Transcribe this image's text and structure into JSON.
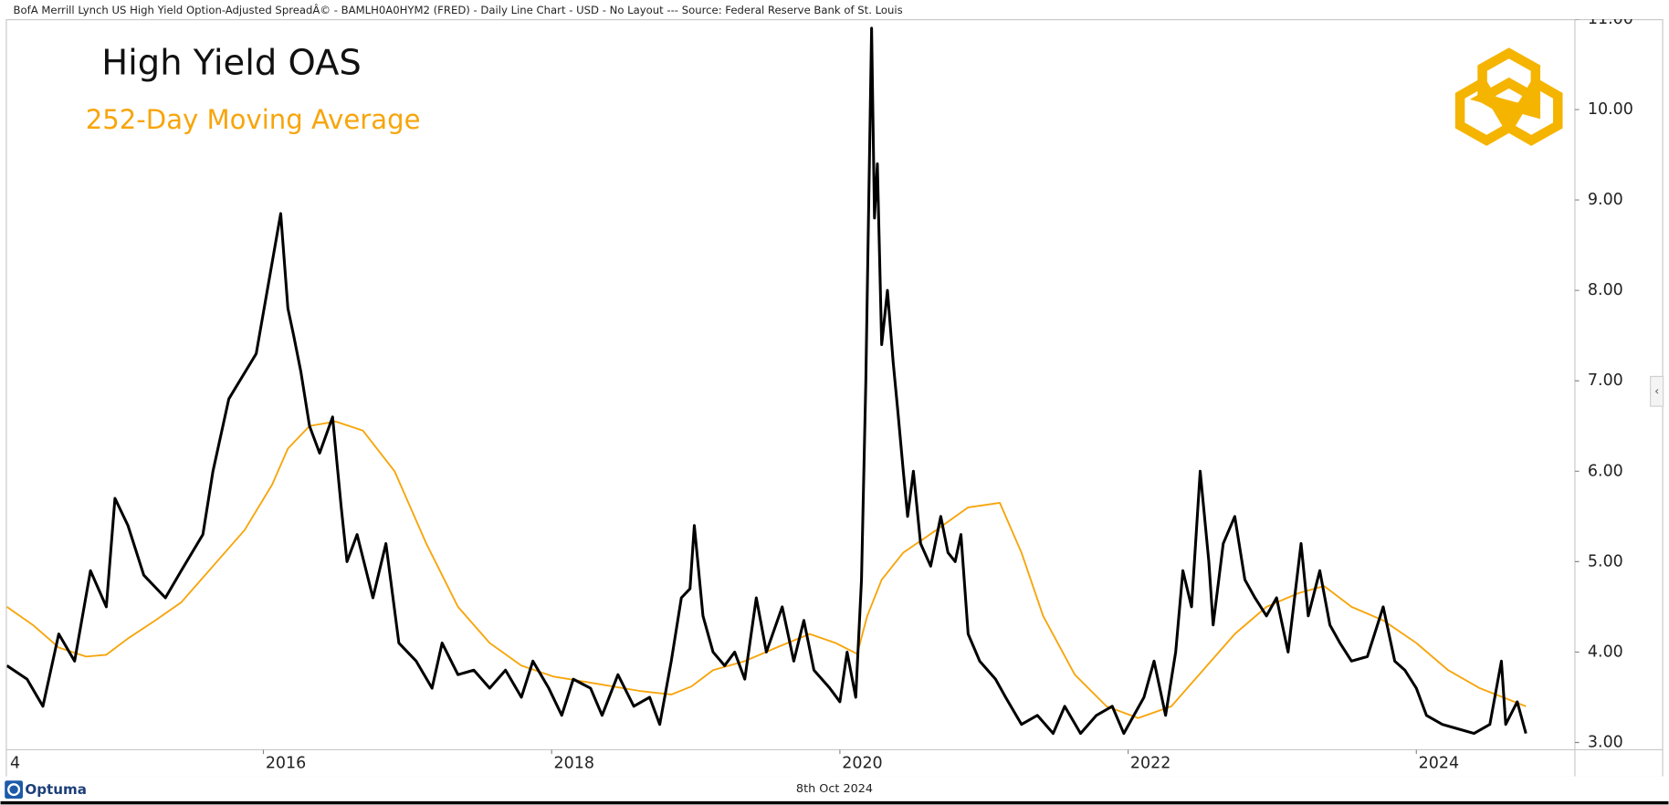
{
  "chart_data": {
    "type": "line",
    "header": "BofA Merrill Lynch US High Yield Option-Adjusted SpreadÂ© - BAMLH0A0HYM2 (FRED) - Daily Line Chart - USD - No Layout --- Source: Federal Reserve Bank of St. Louis",
    "title": "High Yield OAS",
    "subtitle": "252-Day Moving Average",
    "date": "8th Oct 2024",
    "brand": "Optuma",
    "xlim": [
      2014.22,
      2025.1
    ],
    "ylim": [
      2.92,
      11.0
    ],
    "xticks": [
      {
        "value": 2014,
        "label": "4"
      },
      2016,
      2018,
      2020,
      2022,
      2024
    ],
    "yticks": [
      {
        "value": 3,
        "label": "3.00"
      },
      {
        "value": 4,
        "label": "4.00"
      },
      {
        "value": 5,
        "label": "5.00"
      },
      {
        "value": 6,
        "label": "6.00"
      },
      {
        "value": 7,
        "label": "7.00"
      },
      {
        "value": 8,
        "label": "8.00"
      },
      {
        "value": 9,
        "label": "9.00"
      },
      {
        "value": 10,
        "label": "10.00"
      },
      {
        "value": 11,
        "label": "11.00"
      }
    ],
    "series": [
      {
        "color": "#000000",
        "x": [
          2014.22,
          2014.36,
          2014.47,
          2014.58,
          2014.69,
          2014.8,
          2014.91,
          2014.97,
          2015.06,
          2015.17,
          2015.32,
          2015.43,
          2015.58,
          2015.65,
          2015.76,
          2015.95,
          2016.12,
          2016.17,
          2016.21,
          2016.26,
          2016.32,
          2016.39,
          2016.48,
          2016.54,
          2016.58,
          2016.65,
          2016.76,
          2016.85,
          2016.94,
          2017.06,
          2017.17,
          2017.24,
          2017.35,
          2017.46,
          2017.57,
          2017.68,
          2017.79,
          2017.87,
          2017.98,
          2018.07,
          2018.15,
          2018.27,
          2018.35,
          2018.46,
          2018.57,
          2018.68,
          2018.75,
          2018.83,
          2018.9,
          2018.96,
          2018.99,
          2019.05,
          2019.12,
          2019.2,
          2019.27,
          2019.34,
          2019.42,
          2019.49,
          2019.6,
          2019.68,
          2019.75,
          2019.82,
          2019.93,
          2020.0,
          2020.05,
          2020.11,
          2020.15,
          2020.18,
          2020.22,
          2020.24,
          2020.26,
          2020.29,
          2020.33,
          2020.37,
          2020.4,
          2020.44,
          2020.47,
          2020.51,
          2020.56,
          2020.63,
          2020.7,
          2020.75,
          2020.8,
          2020.84,
          2020.89,
          2020.97,
          2021.08,
          2021.15,
          2021.26,
          2021.37,
          2021.48,
          2021.56,
          2021.67,
          2021.78,
          2021.89,
          2021.97,
          2022.04,
          2022.11,
          2022.18,
          2022.26,
          2022.33,
          2022.38,
          2022.44,
          2022.5,
          2022.56,
          2022.59,
          2022.66,
          2022.74,
          2022.81,
          2022.88,
          2022.96,
          2023.03,
          2023.11,
          2023.2,
          2023.25,
          2023.33,
          2023.4,
          2023.47,
          2023.55,
          2023.66,
          2023.77,
          2023.85,
          2023.92,
          2024.0,
          2024.07,
          2024.18,
          2024.29,
          2024.4,
          2024.51,
          2024.59,
          2024.62,
          2024.7,
          2024.76
        ],
        "values": [
          3.85,
          3.7,
          3.4,
          4.2,
          3.9,
          4.9,
          4.5,
          5.7,
          5.4,
          4.85,
          4.6,
          4.9,
          5.3,
          6.0,
          6.8,
          7.3,
          8.85,
          7.8,
          7.5,
          7.1,
          6.5,
          6.2,
          6.6,
          5.6,
          5.0,
          5.3,
          4.6,
          5.2,
          4.1,
          3.9,
          3.6,
          4.1,
          3.75,
          3.8,
          3.6,
          3.8,
          3.5,
          3.9,
          3.6,
          3.3,
          3.7,
          3.6,
          3.3,
          3.75,
          3.4,
          3.5,
          3.2,
          3.9,
          4.6,
          4.7,
          5.4,
          4.4,
          4.0,
          3.85,
          4.0,
          3.7,
          4.6,
          4.0,
          4.5,
          3.9,
          4.35,
          3.8,
          3.6,
          3.45,
          4.0,
          3.5,
          4.8,
          7.0,
          10.9,
          8.8,
          9.4,
          7.4,
          8.0,
          7.2,
          6.7,
          6.0,
          5.5,
          6.0,
          5.2,
          4.95,
          5.5,
          5.1,
          5.0,
          5.3,
          4.2,
          3.9,
          3.7,
          3.5,
          3.2,
          3.3,
          3.1,
          3.4,
          3.1,
          3.3,
          3.4,
          3.1,
          3.3,
          3.5,
          3.9,
          3.3,
          4.0,
          4.9,
          4.5,
          6.0,
          5.0,
          4.3,
          5.2,
          5.5,
          4.8,
          4.6,
          4.4,
          4.6,
          4.0,
          5.2,
          4.4,
          4.9,
          4.3,
          4.1,
          3.9,
          3.95,
          4.5,
          3.9,
          3.8,
          3.6,
          3.3,
          3.2,
          3.15,
          3.1,
          3.2,
          3.9,
          3.2,
          3.45,
          3.1
        ]
      },
      {
        "color": "#f7a50c",
        "x": [
          2014.22,
          2014.4,
          2014.58,
          2014.77,
          2014.91,
          2015.06,
          2015.25,
          2015.43,
          2015.65,
          2015.87,
          2016.06,
          2016.17,
          2016.32,
          2016.5,
          2016.69,
          2016.91,
          2017.13,
          2017.35,
          2017.57,
          2017.79,
          2018.01,
          2018.31,
          2018.61,
          2018.83,
          2018.97,
          2019.12,
          2019.34,
          2019.56,
          2019.79,
          2019.97,
          2020.12,
          2020.19,
          2020.29,
          2020.44,
          2020.67,
          2020.89,
          2021.11,
          2021.26,
          2021.41,
          2021.63,
          2021.85,
          2022.07,
          2022.3,
          2022.52,
          2022.74,
          2022.96,
          2023.18,
          2023.36,
          2023.55,
          2023.77,
          2024.0,
          2024.22,
          2024.44,
          2024.76
        ],
        "values": [
          4.5,
          4.3,
          4.05,
          3.95,
          3.97,
          4.15,
          4.35,
          4.55,
          4.95,
          5.35,
          5.85,
          6.25,
          6.5,
          6.55,
          6.45,
          6.0,
          5.2,
          4.5,
          4.1,
          3.85,
          3.73,
          3.65,
          3.57,
          3.53,
          3.62,
          3.8,
          3.9,
          4.05,
          4.2,
          4.1,
          3.98,
          4.4,
          4.8,
          5.1,
          5.35,
          5.6,
          5.65,
          5.1,
          4.4,
          3.75,
          3.4,
          3.27,
          3.4,
          3.8,
          4.2,
          4.5,
          4.65,
          4.73,
          4.5,
          4.35,
          4.1,
          3.8,
          3.6,
          3.4
        ]
      }
    ]
  }
}
